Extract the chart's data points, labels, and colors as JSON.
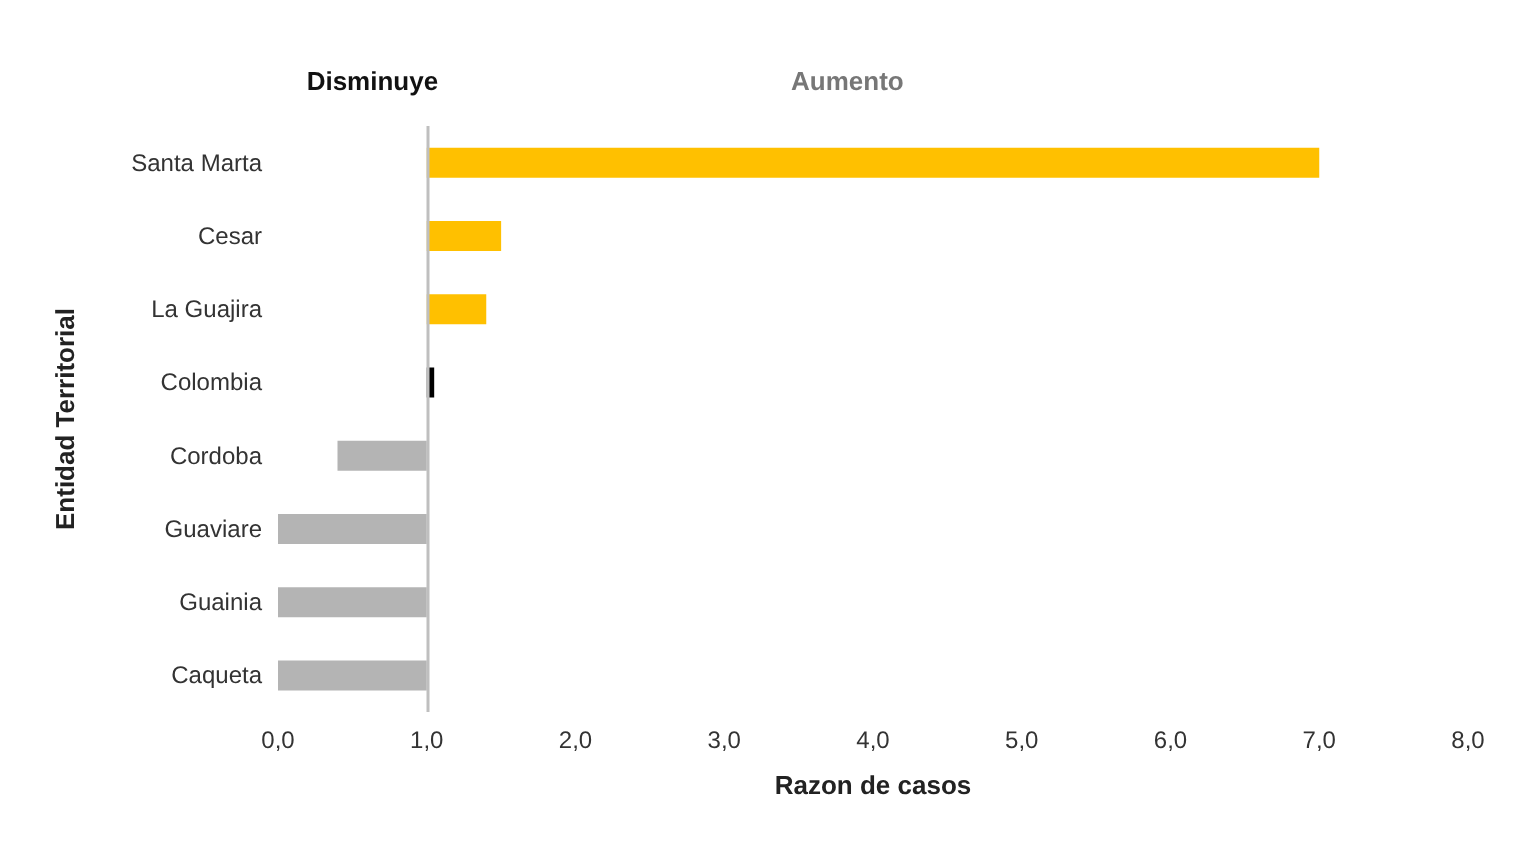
{
  "chart_data": {
    "type": "bar",
    "orientation": "horizontal",
    "categories": [
      "Santa Marta",
      "Cesar",
      "La Guajira",
      "Colombia",
      "Cordoba",
      "Guaviare",
      "Guainia",
      "Caqueta"
    ],
    "base": [
      1,
      1,
      1,
      1,
      1,
      1,
      1,
      1
    ],
    "values": [
      6,
      0.5,
      0.4,
      0.05,
      -0.6,
      -1,
      -1,
      -1
    ],
    "colors": [
      "#ffc000",
      "#ffc000",
      "#ffc000",
      "#000000",
      "#b4b4b4",
      "#b4b4b4",
      "#b4b4b4",
      "#b4b4b4"
    ],
    "xlim": [
      0,
      8
    ],
    "xticks": [
      {
        "value": 0,
        "label": "0,0"
      },
      {
        "value": 1,
        "label": "1,0"
      },
      {
        "value": 2,
        "label": "2,0"
      },
      {
        "value": 3,
        "label": "3,0"
      },
      {
        "value": 4,
        "label": "4,0"
      },
      {
        "value": 5,
        "label": "5,0"
      },
      {
        "value": 6,
        "label": "6,0"
      },
      {
        "value": 7,
        "label": "7,0"
      },
      {
        "value": 8,
        "label": "8,0"
      }
    ],
    "xlabel": "Razon de casos",
    "ylabel": "Entidad Territorial",
    "ref_lines": [
      {
        "axis": "x",
        "value": 1,
        "color": "#bfbfbf"
      }
    ],
    "annotations": [
      "Disminuye",
      "Aumento"
    ],
    "grid": false
  }
}
